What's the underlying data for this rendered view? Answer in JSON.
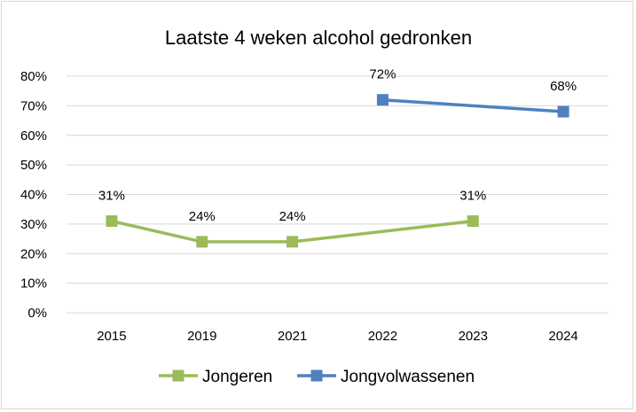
{
  "chart_data": {
    "type": "line",
    "title": "Laatste 4 weken alcohol gedronken",
    "categories": [
      "2015",
      "2019",
      "2021",
      "2022",
      "2023",
      "2024"
    ],
    "yticks": [
      "0%",
      "10%",
      "20%",
      "30%",
      "40%",
      "50%",
      "60%",
      "70%",
      "80%"
    ],
    "ylim": [
      0,
      80
    ],
    "grid": true,
    "legend_position": "bottom",
    "series": [
      {
        "name": "Jongeren",
        "color": "#9bbb59",
        "values": [
          31,
          24,
          24,
          null,
          31,
          null
        ],
        "labels": [
          "31%",
          "24%",
          "24%",
          null,
          "31%",
          null
        ]
      },
      {
        "name": "Jongvolwassenen",
        "color": "#4f81bd",
        "values": [
          null,
          null,
          null,
          72,
          null,
          68
        ],
        "labels": [
          null,
          null,
          null,
          "72%",
          null,
          "68%"
        ]
      }
    ]
  }
}
